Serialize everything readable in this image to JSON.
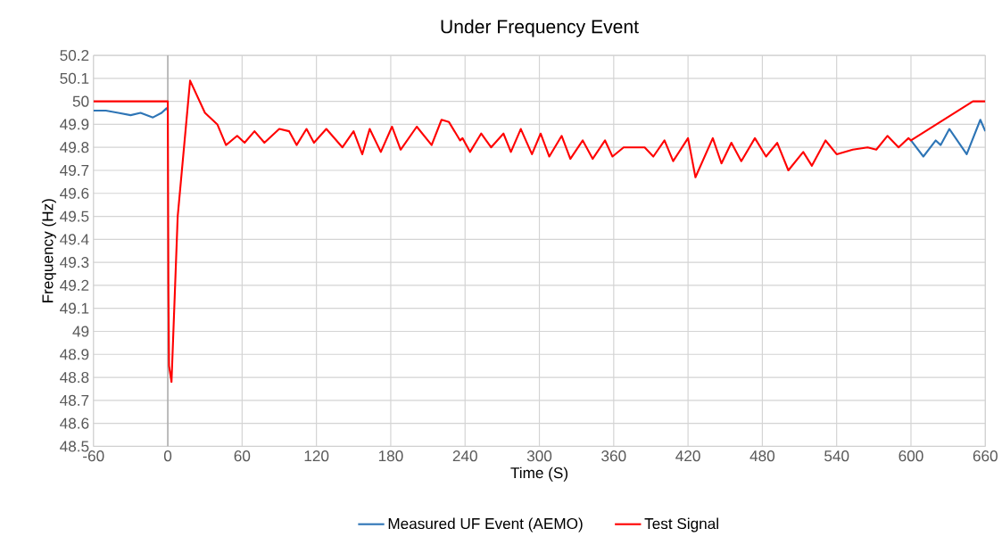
{
  "chart_data": {
    "type": "line",
    "title": "Under Frequency Event",
    "xlabel": "Time (S)",
    "ylabel": "Frequency (Hz)",
    "xlim": [
      -60,
      660
    ],
    "xticks": [
      -60,
      0,
      60,
      120,
      180,
      240,
      300,
      360,
      420,
      480,
      540,
      600,
      660
    ],
    "ylim": [
      48.5,
      50.2
    ],
    "yticks": [
      48.5,
      48.6,
      48.7,
      48.8,
      48.9,
      49,
      49.1,
      49.2,
      49.3,
      49.4,
      49.5,
      49.6,
      49.7,
      49.8,
      49.9,
      50,
      50.1,
      50.2
    ],
    "grid": true,
    "legend": "bottom",
    "marker": "none",
    "line_style": "solid",
    "ref_lines": [
      {
        "axis": "x",
        "value": 0,
        "color": "#a6a6a6"
      }
    ],
    "series": [
      {
        "name": "Measured UF Event (AEMO)",
        "color": "#2e75b6",
        "x": [
          -60,
          -50,
          -40,
          -30,
          -22,
          -12,
          -5,
          -1,
          0,
          300,
          600,
          610,
          620,
          624,
          631,
          645,
          656,
          660
        ],
        "values": [
          49.96,
          49.96,
          49.95,
          49.94,
          49.95,
          49.93,
          49.95,
          49.97,
          49.96,
          null,
          49.83,
          49.76,
          49.83,
          49.81,
          49.88,
          49.77,
          49.92,
          49.87
        ]
      },
      {
        "name": "Test Signal",
        "color": "#ff0000",
        "x": [
          -60,
          0,
          0.5,
          1,
          3,
          8,
          18,
          30,
          40,
          47,
          56,
          62,
          70,
          78,
          90,
          98,
          104,
          112,
          118,
          128,
          141,
          150,
          157,
          163,
          172,
          181,
          188,
          201,
          213,
          221,
          227,
          236,
          238,
          244,
          253,
          261,
          271,
          277,
          285,
          294,
          301,
          308,
          318,
          325,
          335,
          343,
          353,
          359,
          368,
          375,
          385,
          392,
          401,
          408,
          420,
          426,
          440,
          447,
          455,
          463,
          474,
          483,
          492,
          501,
          513,
          520,
          531,
          540,
          553,
          565,
          572,
          581,
          590,
          598,
          600,
          650,
          660
        ],
        "values": [
          50,
          50,
          49.2,
          48.85,
          48.78,
          49.5,
          50.09,
          49.95,
          49.9,
          49.81,
          49.85,
          49.82,
          49.87,
          49.82,
          49.88,
          49.87,
          49.81,
          49.88,
          49.82,
          49.88,
          49.8,
          49.87,
          49.77,
          49.88,
          49.78,
          49.89,
          49.79,
          49.89,
          49.81,
          49.92,
          49.91,
          49.83,
          49.84,
          49.78,
          49.86,
          49.8,
          49.86,
          49.78,
          49.88,
          49.77,
          49.86,
          49.76,
          49.85,
          49.75,
          49.83,
          49.75,
          49.83,
          49.76,
          49.8,
          49.8,
          49.8,
          49.76,
          49.83,
          49.74,
          49.84,
          49.67,
          49.84,
          49.73,
          49.82,
          49.74,
          49.84,
          49.76,
          49.82,
          49.7,
          49.78,
          49.72,
          49.83,
          49.77,
          49.79,
          49.8,
          49.79,
          49.85,
          49.8,
          49.84,
          49.83,
          50,
          50
        ]
      }
    ]
  }
}
